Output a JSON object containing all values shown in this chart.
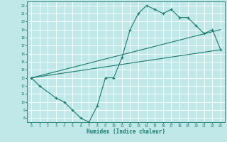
{
  "xlabel": "Humidex (Indice chaleur)",
  "ylabel": "",
  "bg_color": "#c0e8e8",
  "line_color": "#1a7a6e",
  "grid_color": "#ffffff",
  "xlim": [
    -0.5,
    23.5
  ],
  "ylim": [
    7.5,
    22.5
  ],
  "xticks": [
    0,
    1,
    2,
    3,
    4,
    5,
    6,
    7,
    8,
    9,
    10,
    11,
    12,
    13,
    14,
    15,
    16,
    17,
    18,
    19,
    20,
    21,
    22,
    23
  ],
  "yticks": [
    8,
    9,
    10,
    11,
    12,
    13,
    14,
    15,
    16,
    17,
    18,
    19,
    20,
    21,
    22
  ],
  "series1_x": [
    0,
    1,
    3,
    4,
    5,
    6,
    7,
    8,
    9,
    10,
    11,
    12,
    13,
    14,
    15,
    16,
    17,
    18,
    19,
    20,
    21,
    22,
    23
  ],
  "series1_y": [
    13,
    12,
    10.5,
    10,
    9,
    8,
    7.5,
    9.5,
    13,
    13,
    15.5,
    19,
    21,
    22,
    21.5,
    21,
    21.5,
    20.5,
    20.5,
    19.5,
    18.5,
    19,
    16.5
  ],
  "series2_x": [
    0,
    23
  ],
  "series2_y": [
    13,
    16.5
  ],
  "series3_x": [
    0,
    23
  ],
  "series3_y": [
    13,
    19
  ]
}
